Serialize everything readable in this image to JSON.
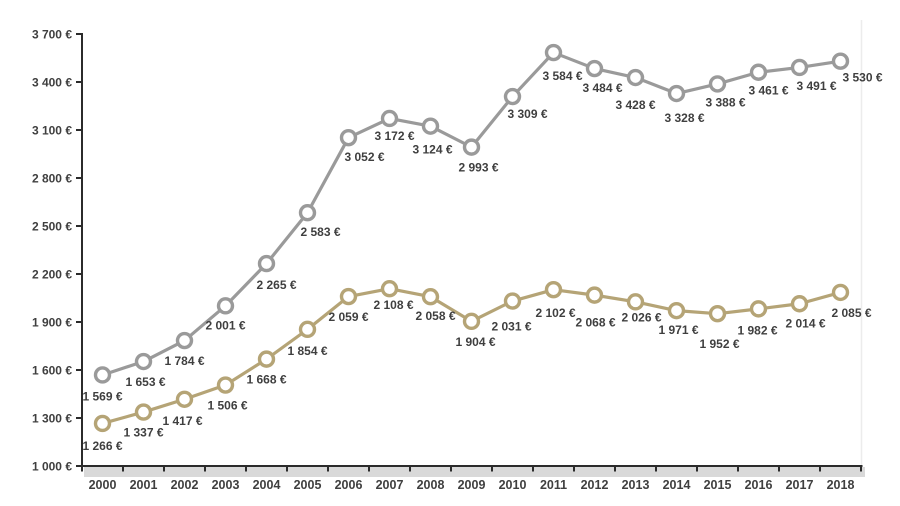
{
  "chart_data": {
    "type": "line",
    "title": "",
    "xlabel": "",
    "ylabel": "",
    "grid": false,
    "legend": "none",
    "x": [
      2000,
      2001,
      2002,
      2003,
      2004,
      2005,
      2006,
      2007,
      2008,
      2009,
      2010,
      2011,
      2012,
      2013,
      2014,
      2015,
      2016,
      2017,
      2018
    ],
    "x_tick_labels": [
      "2000",
      "2001",
      "2002",
      "2003",
      "2004",
      "2005",
      "2006",
      "2007",
      "2008",
      "2009",
      "2010",
      "2011",
      "2012",
      "2013",
      "2014",
      "2015",
      "2016",
      "2017",
      "2018"
    ],
    "ylim": [
      1000,
      3700
    ],
    "y_ticks": [
      1000,
      1300,
      1600,
      1900,
      2200,
      2500,
      2800,
      3100,
      3400,
      3700
    ],
    "y_tick_labels": [
      "1 000 €",
      "1 300 €",
      "1 600 €",
      "1 900 €",
      "2 200 €",
      "2 500 €",
      "2 800 €",
      "3 100 €",
      "3 400 €",
      "3 700 €"
    ],
    "series": [
      {
        "name": "upper-gray-series",
        "color": "#9a9a9a",
        "values": [
          1569,
          1653,
          1784,
          2001,
          2265,
          2583,
          3052,
          3172,
          3124,
          2993,
          3309,
          3584,
          3484,
          3428,
          3328,
          3388,
          3461,
          3491,
          3530
        ],
        "labels": [
          "1 569 €",
          "1 653 €",
          "1 784 €",
          "2 001 €",
          "2 265 €",
          "2 583 €",
          "3 052 €",
          "3 172 €",
          "3 124 €",
          "2 993 €",
          "3 309 €",
          "3 584 €",
          "3 484 €",
          "3 428 €",
          "3 328 €",
          "3 388 €",
          "3 461 €",
          "3 491 €",
          "3 530 €"
        ],
        "label_offsets": [
          [
            0,
            21
          ],
          [
            2,
            20
          ],
          [
            0,
            20
          ],
          [
            0,
            19
          ],
          [
            10,
            21
          ],
          [
            13,
            19
          ],
          [
            16,
            19
          ],
          [
            5,
            17
          ],
          [
            2,
            23
          ],
          [
            7,
            20
          ],
          [
            15,
            17
          ],
          [
            9,
            23
          ],
          [
            8,
            19
          ],
          [
            0,
            27
          ],
          [
            8,
            24
          ],
          [
            8,
            18
          ],
          [
            10,
            18
          ],
          [
            17,
            18
          ],
          [
            22,
            16
          ]
        ]
      },
      {
        "name": "lower-tan-series",
        "color": "#b5a476",
        "values": [
          1266,
          1337,
          1417,
          1506,
          1668,
          1854,
          2059,
          2108,
          2058,
          1904,
          2031,
          2102,
          2068,
          2026,
          1971,
          1952,
          1982,
          2014,
          2085
        ],
        "labels": [
          "1 266 €",
          "1 337 €",
          "1 417 €",
          "1 506 €",
          "1 668 €",
          "1 854 €",
          "2 059 €",
          "2 108 €",
          "2 058 €",
          "1 904 €",
          "2 031 €",
          "2 102 €",
          "2 068 €",
          "2 026 €",
          "1 971 €",
          "1 952 €",
          "1 982 €",
          "2 014 €",
          "2 085 €"
        ],
        "label_offsets": [
          [
            0,
            22
          ],
          [
            0,
            20
          ],
          [
            -2,
            21
          ],
          [
            2,
            20
          ],
          [
            0,
            20
          ],
          [
            0,
            21
          ],
          [
            0,
            20
          ],
          [
            4,
            16
          ],
          [
            5,
            19
          ],
          [
            4,
            20
          ],
          [
            -1,
            25
          ],
          [
            2,
            23
          ],
          [
            1,
            27
          ],
          [
            6,
            15
          ],
          [
            2,
            19
          ],
          [
            2,
            30
          ],
          [
            -1,
            21
          ],
          [
            6,
            19
          ],
          [
            11,
            20
          ]
        ]
      }
    ],
    "marker": {
      "fill": "#ffffff",
      "radius": 7,
      "stroke_width": 3.4
    },
    "line_width": 3.2,
    "axis_color": "#2b2b2b",
    "label_color": "#3f3f3f",
    "tick_label_color": "#3f3f3f",
    "shadow_color": "#d9d9d9",
    "right_edge_color": "#ececec",
    "background": "#ffffff"
  }
}
